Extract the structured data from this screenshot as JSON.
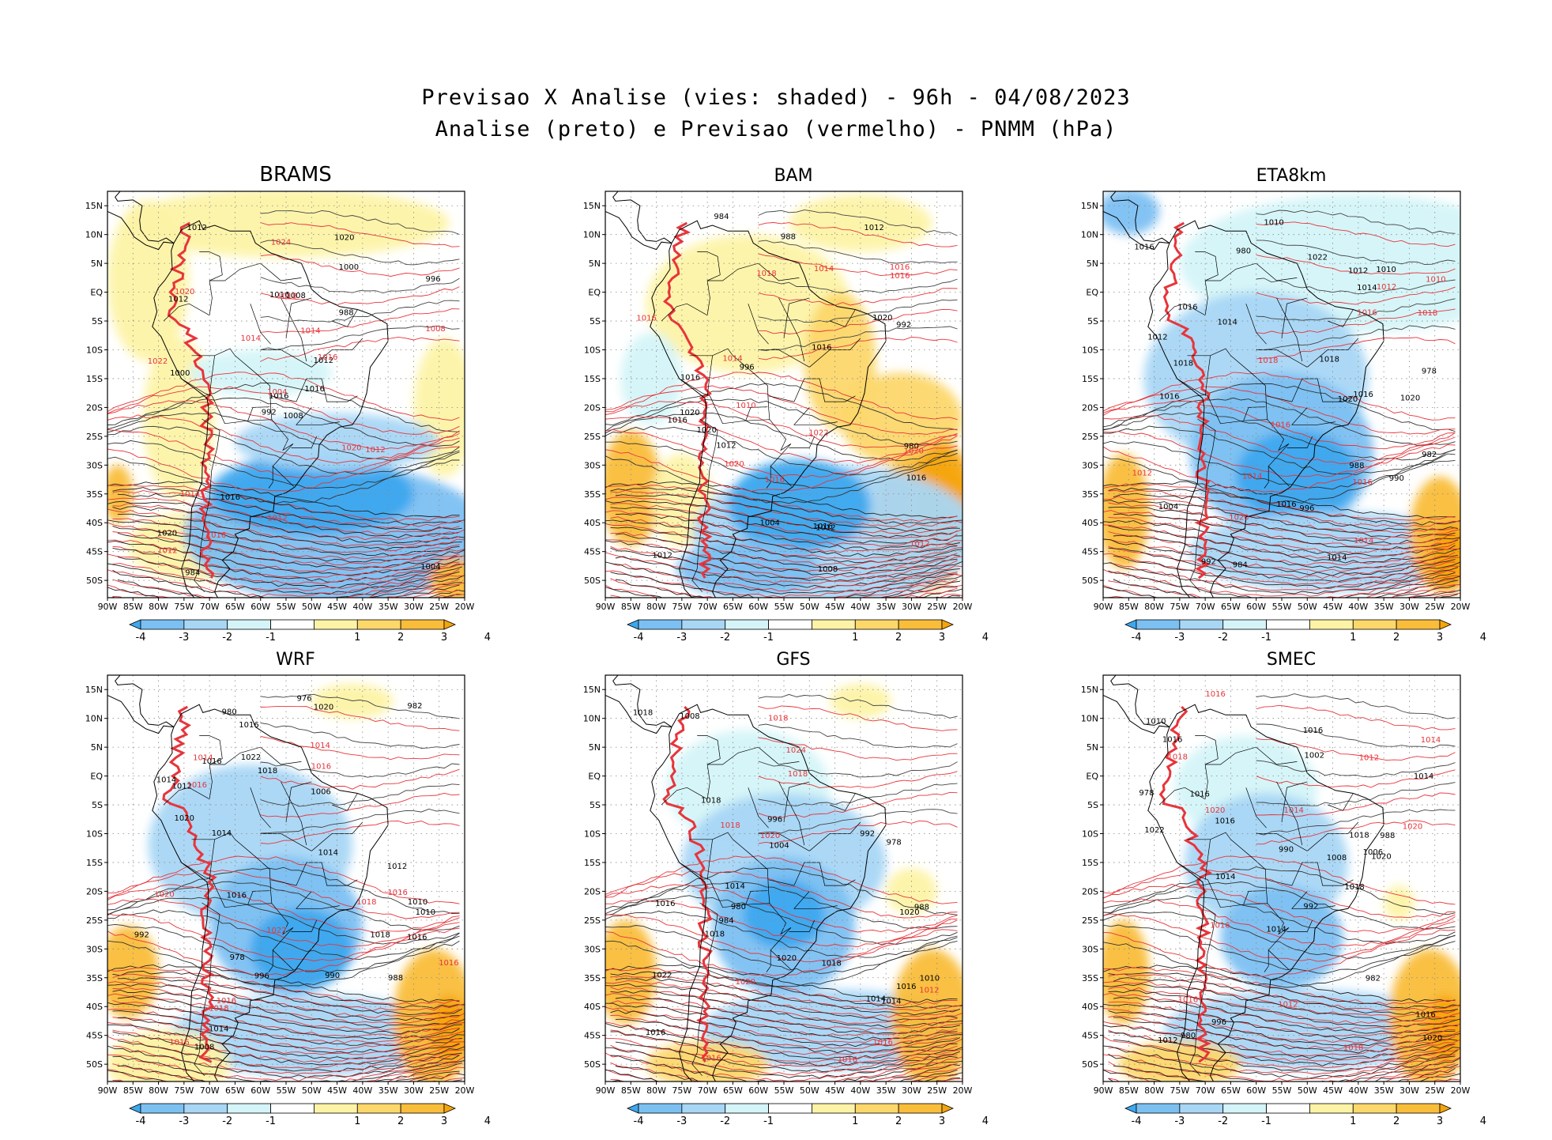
{
  "title_line1": "Previsao X Analise (vies: shaded) - 96h - 04/08/2023",
  "title_line2": "Analise (preto) e Previsao (vermelho) - PNMM (hPa)",
  "lat_labels": [
    "15N",
    "10N",
    "5N",
    "EQ",
    "5S",
    "10S",
    "15S",
    "20S",
    "25S",
    "30S",
    "35S",
    "40S",
    "45S",
    "50S"
  ],
  "lon_labels": [
    "90W",
    "85W",
    "80W",
    "75W",
    "70W",
    "65W",
    "60W",
    "55W",
    "50W",
    "45W",
    "40W",
    "35W",
    "30W",
    "25W",
    "20W"
  ],
  "colorbar": {
    "labels": [
      "-4",
      "-3",
      "-2",
      "-1",
      "1",
      "2",
      "3",
      "4"
    ],
    "colors": [
      "#3ea8ef",
      "#7cc0f2",
      "#a8d6f5",
      "#d4f4f8",
      "#ffffff",
      "#fdf3a6",
      "#fcd76a",
      "#f9bd3a",
      "#f5a50a"
    ]
  },
  "colors": {
    "analysis_contour": "#000000",
    "forecast_contour": "#e8343a",
    "negative_bias": "#5ab0ee",
    "positive_bias": "#f8c24a",
    "strong_negative": "#3f94e6",
    "strong_positive": "#f3a618"
  },
  "panels": [
    {
      "name": "BRAMS",
      "bias": "mixed",
      "labels_black": [
        "1008",
        "1012",
        "1016",
        "1020",
        "1012",
        "1016",
        "1020",
        "1008",
        "1000",
        "1016",
        "1012",
        "1004",
        "1000",
        "996",
        "992",
        "988",
        "984",
        "1016"
      ],
      "labels_red": [
        "1014",
        "1014",
        "1014",
        "1012",
        "1016",
        "1018",
        "1016",
        "1012",
        "1020",
        "1024",
        "1022",
        "1020",
        "1008",
        "1004",
        "1012"
      ]
    },
    {
      "name": "BAM",
      "bias": "positive",
      "labels_black": [
        "1012",
        "1012",
        "1016",
        "1016",
        "1016",
        "1020",
        "1012",
        "1016",
        "1020",
        "1020",
        "1016",
        "1012",
        "1008",
        "1004",
        "996",
        "992",
        "988",
        "984",
        "980"
      ],
      "labels_red": [
        "1016",
        "1016",
        "1016",
        "1014",
        "1018",
        "1022",
        "1020",
        "1014",
        "1012",
        "1020",
        "1016",
        "1010"
      ]
    },
    {
      "name": "ETA8km",
      "bias": "negative",
      "labels_black": [
        "1012",
        "1010",
        "1014",
        "1016",
        "1016",
        "1018",
        "1016",
        "1020",
        "1014",
        "1016",
        "1018",
        "1022",
        "1016",
        "1020",
        "1014",
        "1012",
        "1010",
        "1004",
        "992",
        "988",
        "984",
        "982",
        "978",
        "980",
        "996",
        "990"
      ],
      "labels_red": [
        "1016",
        "1014",
        "1014",
        "1012",
        "1016",
        "1018",
        "1020",
        "1010",
        "1012",
        "1016",
        "1018"
      ]
    },
    {
      "name": "WRF",
      "bias": "negative",
      "labels_black": [
        "1012",
        "1014",
        "1010",
        "1008",
        "1016",
        "1014",
        "1016",
        "1018",
        "1020",
        "1014",
        "1016",
        "1018",
        "1020",
        "1022",
        "1016",
        "1014",
        "1012",
        "1010",
        "1006",
        "992",
        "988",
        "982",
        "978",
        "980",
        "976",
        "996",
        "990"
      ],
      "labels_red": [
        "1016",
        "1014",
        "1016",
        "1016",
        "1014",
        "1016",
        "1018",
        "1016",
        "1018",
        "1016",
        "1020",
        "1022"
      ]
    },
    {
      "name": "GFS",
      "bias": "negative",
      "labels_black": [
        "1010",
        "1014",
        "1016",
        "1018",
        "1020",
        "1018",
        "1014",
        "1016",
        "1018",
        "1020",
        "1022",
        "1018",
        "1016",
        "1014",
        "1008",
        "1004",
        "996",
        "992",
        "988",
        "984",
        "980",
        "978"
      ],
      "labels_red": [
        "1016",
        "1016",
        "1018",
        "1012",
        "1016",
        "1018",
        "1020",
        "1020",
        "1024",
        "1018"
      ]
    },
    {
      "name": "SMEC",
      "bias": "negative",
      "labels_black": [
        "1010",
        "1014",
        "1016",
        "1016",
        "1014",
        "1016",
        "1018",
        "1020",
        "1016",
        "1018",
        "1020",
        "1022",
        "1016",
        "1014",
        "1012",
        "1008",
        "1006",
        "1002",
        "996",
        "992",
        "988",
        "982",
        "978",
        "980",
        "990"
      ],
      "labels_red": [
        "1012",
        "1014",
        "1012",
        "1016",
        "1014",
        "1020",
        "1018",
        "1016",
        "1020",
        "1018",
        "1016"
      ]
    }
  ]
}
